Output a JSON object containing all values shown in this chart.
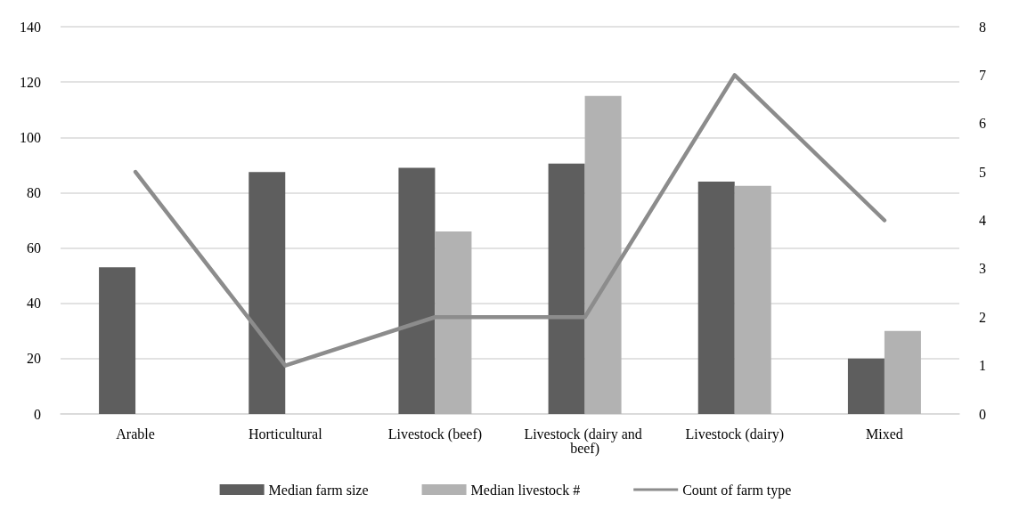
{
  "chart_data": {
    "type": "bar",
    "categories": [
      "Arable",
      "Horticultural",
      "Livestock (beef)",
      "Livestock (dairy and beef)",
      "Livestock (dairy)",
      "Mixed"
    ],
    "series": [
      {
        "name": "Median farm size",
        "color": "#5e5e5e",
        "values": [
          53,
          87.5,
          89,
          90.5,
          84,
          20
        ]
      },
      {
        "name": "Median livestock #",
        "color": "#b2b2b2",
        "values": [
          null,
          null,
          66,
          115,
          82.5,
          30
        ]
      },
      {
        "name": "Count of farm type",
        "type": "line",
        "axis": "y2",
        "color": "#8c8c8c",
        "values": [
          5,
          1,
          2,
          2,
          7,
          4
        ]
      }
    ],
    "ylim": [
      0,
      140
    ],
    "yticks": [
      0,
      20,
      40,
      60,
      80,
      100,
      120,
      140
    ],
    "y2lim": [
      0,
      8
    ],
    "y2ticks": [
      0,
      1,
      2,
      3,
      4,
      5,
      6,
      7,
      8
    ],
    "grid": "y",
    "legend": "bottom",
    "marker": "none"
  }
}
